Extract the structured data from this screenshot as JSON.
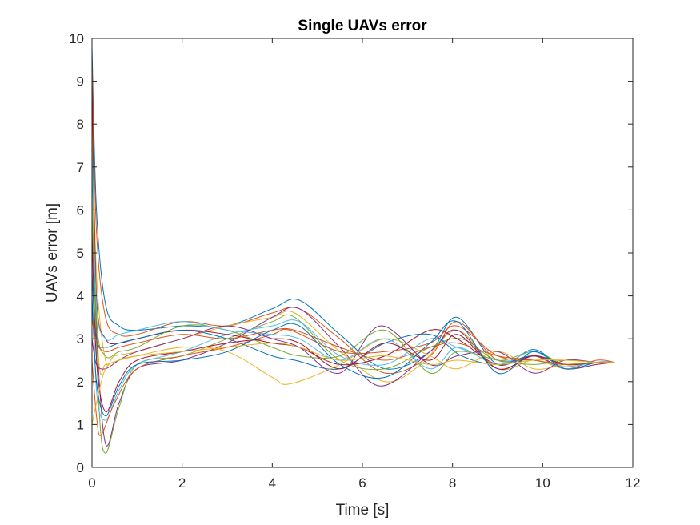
{
  "chart_data": {
    "type": "line",
    "title": "Single UAVs error",
    "xlabel": "Time [s]",
    "ylabel": "UAVs error [m]",
    "xlim": [
      0,
      12
    ],
    "ylim": [
      0,
      10
    ],
    "xticks": [
      0,
      2,
      4,
      6,
      8,
      10,
      12
    ],
    "yticks": [
      0,
      1,
      2,
      3,
      4,
      5,
      6,
      7,
      8,
      9,
      10
    ],
    "xtick_labels": [
      "0",
      "2",
      "4",
      "6",
      "8",
      "10",
      "12"
    ],
    "ytick_labels": [
      "0",
      "1",
      "2",
      "3",
      "4",
      "5",
      "6",
      "7",
      "8",
      "9",
      "10"
    ],
    "grid": false,
    "legend": "none",
    "colors": [
      "#0072BD",
      "#D95319",
      "#EDB120",
      "#7E2F8E",
      "#77AC30",
      "#4DBEEE",
      "#A2142F"
    ],
    "series": [
      {
        "x": [
          0,
          0.1,
          0.3,
          0.6,
          1,
          2,
          3,
          4,
          4.6,
          5.5,
          6.5,
          7.5,
          8.1,
          9,
          9.8,
          10.5,
          11.2,
          11.6
        ],
        "y": [
          9.8,
          6,
          3.8,
          3.3,
          3.2,
          3.3,
          3.3,
          3.7,
          3.9,
          3.1,
          2.3,
          2.7,
          3.5,
          2.4,
          2.75,
          2.3,
          2.45,
          2.45
        ]
      },
      {
        "x": [
          0,
          0.1,
          0.3,
          0.6,
          1,
          2,
          3,
          4,
          4.6,
          5.5,
          6.5,
          7.5,
          8.1,
          9,
          9.8,
          10.5,
          11.2,
          11.6
        ],
        "y": [
          9.5,
          5.5,
          3.5,
          3.1,
          3.1,
          3.4,
          3.3,
          3.6,
          3.7,
          3.0,
          2.2,
          2.6,
          3.4,
          2.5,
          2.6,
          2.3,
          2.5,
          2.45
        ]
      },
      {
        "x": [
          0,
          0.1,
          0.3,
          0.5,
          1,
          2,
          3,
          4,
          4.5,
          5.5,
          6.5,
          7.3,
          8.1,
          9,
          9.8,
          10.5,
          11.2,
          11.6
        ],
        "y": [
          8.5,
          4.5,
          2.5,
          2.6,
          2.7,
          3.0,
          3.3,
          3.5,
          3.6,
          2.7,
          2.0,
          2.4,
          3.2,
          2.3,
          2.5,
          2.3,
          2.4,
          2.45
        ]
      },
      {
        "x": [
          0,
          0.1,
          0.3,
          0.6,
          1,
          2,
          3,
          4,
          4.6,
          5.5,
          6.4,
          7.5,
          8.1,
          9,
          9.8,
          10.5,
          11.2,
          11.6
        ],
        "y": [
          7.0,
          3.2,
          0.55,
          1.5,
          2.3,
          2.5,
          2.9,
          3.5,
          3.7,
          2.8,
          1.9,
          2.7,
          3.2,
          2.3,
          2.6,
          2.3,
          2.4,
          2.45
        ]
      },
      {
        "x": [
          0,
          0.15,
          0.3,
          0.6,
          1,
          2,
          3,
          4,
          4.5,
          5.5,
          6.5,
          7.5,
          8.2,
          9,
          9.8,
          10.5,
          11.2,
          11.6
        ],
        "y": [
          6.0,
          1.5,
          0.33,
          1.4,
          2.4,
          2.6,
          3.0,
          3.4,
          3.5,
          2.5,
          2.3,
          2.8,
          3.0,
          2.5,
          2.7,
          2.4,
          2.45,
          2.45
        ]
      },
      {
        "x": [
          0,
          0.1,
          0.3,
          0.6,
          1,
          2,
          3,
          4,
          4.6,
          5.5,
          6.5,
          7.5,
          8.1,
          9,
          9.8,
          10.5,
          11.2,
          11.6
        ],
        "y": [
          5.0,
          1.8,
          1.1,
          1.8,
          2.4,
          2.7,
          3.1,
          3.3,
          3.4,
          2.6,
          2.4,
          3.0,
          2.8,
          2.5,
          2.5,
          2.35,
          2.45,
          2.45
        ]
      },
      {
        "x": [
          0,
          0.1,
          0.3,
          0.6,
          1,
          2,
          3,
          4,
          4.6,
          5.5,
          6.5,
          7.5,
          8.1,
          9,
          9.8,
          10.5,
          11.2,
          11.6
        ],
        "y": [
          9.0,
          4.0,
          3.0,
          2.9,
          3.0,
          3.2,
          3.1,
          2.9,
          2.8,
          2.4,
          2.6,
          3.2,
          3.0,
          2.4,
          2.6,
          2.4,
          2.45,
          2.45
        ]
      },
      {
        "x": [
          0,
          0.1,
          0.3,
          0.6,
          1,
          2,
          3,
          4,
          4.5,
          5.5,
          6.5,
          7.5,
          8.2,
          9,
          9.8,
          10.5,
          11.2,
          11.6
        ],
        "y": [
          4.5,
          3.0,
          2.8,
          2.9,
          3.0,
          3.2,
          3.0,
          2.6,
          2.5,
          2.3,
          2.9,
          3.1,
          2.6,
          2.4,
          2.6,
          2.4,
          2.45,
          2.45
        ]
      },
      {
        "x": [
          0,
          0.1,
          0.2,
          0.5,
          1,
          2,
          3,
          4,
          4.4,
          5.5,
          6.5,
          7.5,
          8.1,
          9,
          9.8,
          10.5,
          11.2,
          11.6
        ],
        "y": [
          2.5,
          1.2,
          0.75,
          1.5,
          2.3,
          2.6,
          2.8,
          3.1,
          3.2,
          2.7,
          2.7,
          2.9,
          3.3,
          2.6,
          2.5,
          2.4,
          2.45,
          2.45
        ]
      },
      {
        "x": [
          0,
          0.15,
          0.3,
          0.6,
          1,
          2,
          3,
          4,
          4.4,
          5.5,
          6.5,
          7.5,
          8.1,
          9,
          9.8,
          10.5,
          11.2,
          11.6
        ],
        "y": [
          6.5,
          2.5,
          2.4,
          2.5,
          2.6,
          2.8,
          2.7,
          2.1,
          1.95,
          2.4,
          3.0,
          2.6,
          2.3,
          2.7,
          2.3,
          2.4,
          2.45,
          2.45
        ]
      },
      {
        "x": [
          0,
          0.1,
          0.3,
          0.6,
          1,
          2,
          3,
          4,
          4.6,
          5.5,
          6.4,
          7.5,
          8.1,
          9,
          9.8,
          10.5,
          11.2,
          11.6
        ],
        "y": [
          3.0,
          2.4,
          2.3,
          2.5,
          2.7,
          3.0,
          3.3,
          3.0,
          2.8,
          2.2,
          3.3,
          2.4,
          2.6,
          2.7,
          2.2,
          2.5,
          2.45,
          2.45
        ]
      },
      {
        "x": [
          0,
          0.1,
          0.3,
          0.6,
          1,
          2,
          3,
          4,
          4.6,
          5.5,
          6.5,
          7.5,
          8.1,
          9,
          9.8,
          10.5,
          11.2,
          11.6
        ],
        "y": [
          8.0,
          3.5,
          2.6,
          2.7,
          2.8,
          3.3,
          3.2,
          2.8,
          2.6,
          2.6,
          3.2,
          2.2,
          2.7,
          2.5,
          2.4,
          2.5,
          2.45,
          2.45
        ]
      },
      {
        "x": [
          0,
          0.1,
          0.3,
          0.6,
          1,
          2,
          3,
          4,
          4.6,
          5.5,
          6.5,
          7.5,
          8.1,
          9,
          9.8,
          10.5,
          11.2,
          11.6
        ],
        "y": [
          7.5,
          3.8,
          3.0,
          3.1,
          3.2,
          3.4,
          3.2,
          3.1,
          3.0,
          2.5,
          3.0,
          2.3,
          2.8,
          2.4,
          2.7,
          2.3,
          2.45,
          2.45
        ]
      },
      {
        "x": [
          0,
          0.1,
          0.3,
          0.6,
          1,
          2,
          3,
          4,
          4.6,
          5.5,
          6.5,
          7.5,
          8.1,
          9,
          9.8,
          10.5,
          11.2,
          11.6
        ],
        "y": [
          5.5,
          2.5,
          1.3,
          2.0,
          2.5,
          2.7,
          2.9,
          3.0,
          2.9,
          2.3,
          2.9,
          2.5,
          3.1,
          2.3,
          2.6,
          2.4,
          2.45,
          2.45
        ]
      },
      {
        "x": [
          0,
          0.1,
          0.3,
          0.6,
          1,
          2,
          3,
          4,
          4.6,
          5.5,
          6.5,
          7.5,
          8.1,
          9,
          9.8,
          10.5,
          11.2,
          11.6
        ],
        "y": [
          4.0,
          2.0,
          1.2,
          1.9,
          2.4,
          2.5,
          2.7,
          3.2,
          3.3,
          2.4,
          2.1,
          2.9,
          3.4,
          2.2,
          2.7,
          2.3,
          2.45,
          2.45
        ]
      },
      {
        "x": [
          0,
          0.1,
          0.3,
          0.6,
          1,
          2,
          3,
          4,
          4.5,
          5.5,
          6.5,
          7.5,
          8.1,
          9,
          9.8,
          10.5,
          11.2,
          11.6
        ],
        "y": [
          3.5,
          2.9,
          2.7,
          2.8,
          2.9,
          3.1,
          3.0,
          3.2,
          3.2,
          2.8,
          2.5,
          2.8,
          2.9,
          2.6,
          2.5,
          2.4,
          2.45,
          2.45
        ]
      },
      {
        "x": [
          0,
          0.1,
          0.3,
          0.6,
          1,
          2,
          3,
          4,
          4.6,
          5.5,
          6.5,
          7.5,
          8.1,
          9,
          9.8,
          10.5,
          11.2,
          11.6
        ],
        "y": [
          1.0,
          1.5,
          2.3,
          2.5,
          2.6,
          2.7,
          2.8,
          2.9,
          2.8,
          2.5,
          2.6,
          2.4,
          2.5,
          2.4,
          2.5,
          2.5,
          2.45,
          2.45
        ]
      }
    ]
  }
}
